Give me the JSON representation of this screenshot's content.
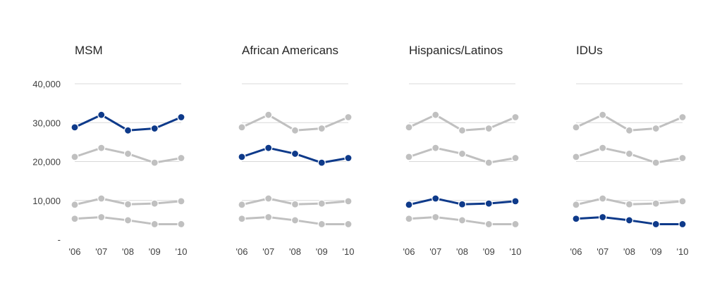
{
  "chart_data": {
    "type": "line",
    "layout": "small-multiples",
    "x": [
      "'06",
      "'07",
      "'08",
      "'09",
      "'10"
    ],
    "y_ticks": [
      "-",
      "10,000",
      "20,000",
      "30,000",
      "40,000"
    ],
    "y_tick_values": [
      0,
      10000,
      20000,
      30000,
      40000
    ],
    "ylim": [
      0,
      40000
    ],
    "grid": true,
    "colors": {
      "highlight": "#0E3A8A",
      "muted": "#C0C0C0",
      "grid": "#D9D9D9"
    },
    "series": [
      {
        "name": "MSM",
        "values": [
          28800,
          32000,
          28000,
          28500,
          31400
        ]
      },
      {
        "name": "African Americans",
        "values": [
          21200,
          23500,
          22000,
          19700,
          20900
        ]
      },
      {
        "name": "Hispanics/Latinos",
        "values": [
          8900,
          10500,
          9000,
          9200,
          9800
        ]
      },
      {
        "name": "IDUs",
        "values": [
          5300,
          5700,
          4900,
          3900,
          3900
        ]
      }
    ],
    "panels": [
      {
        "title": "MSM",
        "highlight": 0
      },
      {
        "title": "African Americans",
        "highlight": 1
      },
      {
        "title": "Hispanics/Latinos",
        "highlight": 2
      },
      {
        "title": "IDUs",
        "highlight": 3
      }
    ]
  }
}
